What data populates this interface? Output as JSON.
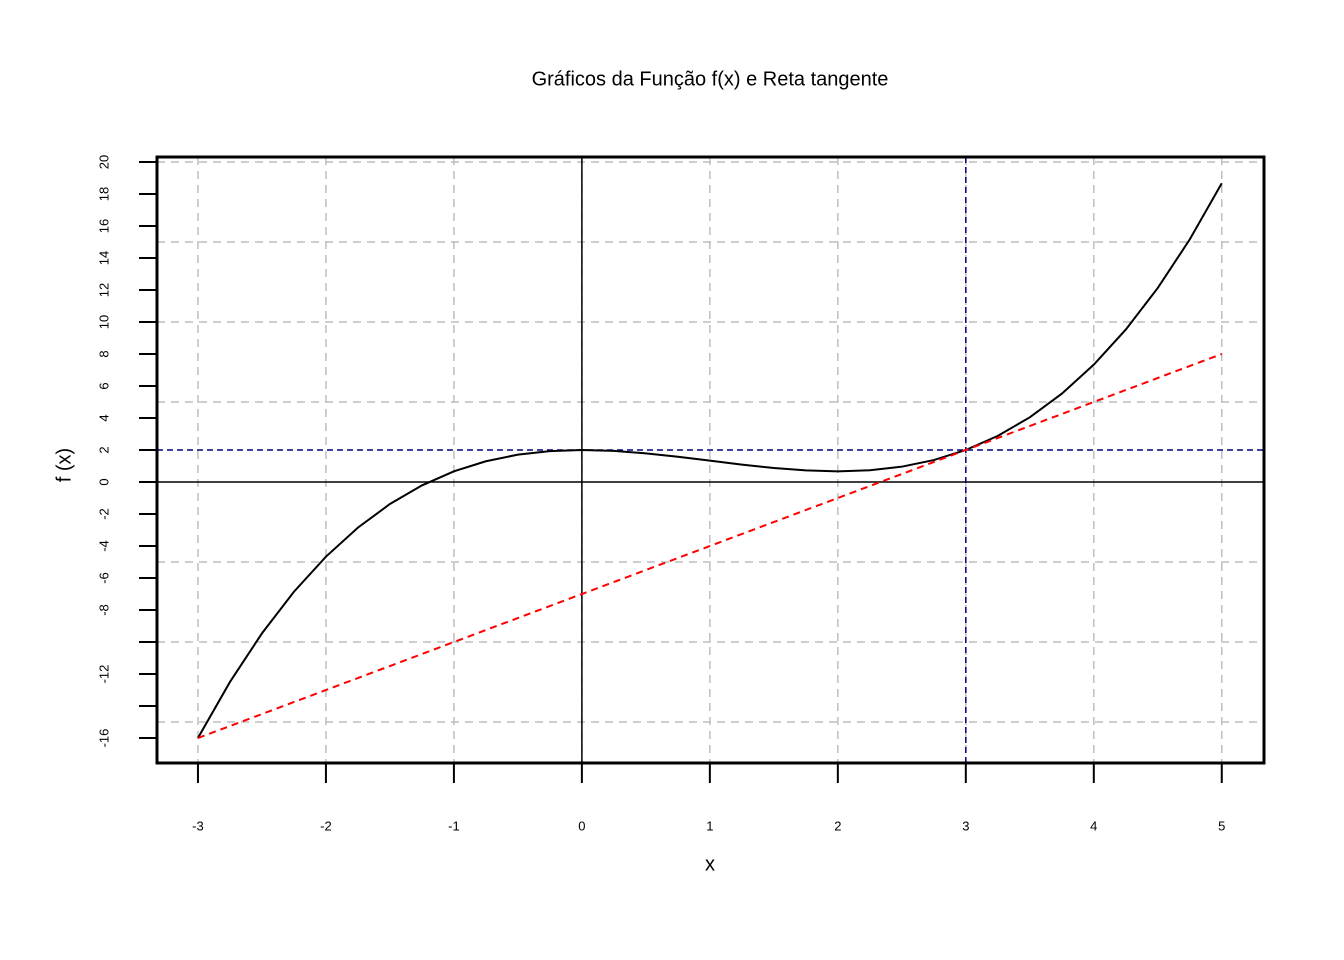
{
  "chart_data": {
    "type": "line",
    "title": "Gráficos da Função f(x) e Reta tangente",
    "x_label": "x",
    "y_label": "f (x)",
    "xlim": [
      -3.32,
      5.33
    ],
    "ylim": [
      -17.56,
      20.31
    ],
    "xticks": [
      -3,
      -2,
      -1,
      0,
      1,
      2,
      3,
      4,
      5
    ],
    "yticks": [
      -16,
      {
        "value": -14,
        "label": null
      },
      -12,
      {
        "value": -10,
        "label": null
      },
      -8,
      -6,
      -4,
      -2,
      0,
      2,
      4,
      6,
      8,
      10,
      12,
      14,
      16,
      18,
      20
    ],
    "grid": true,
    "grid_color": "#bebebe",
    "xgrid": [
      -3,
      -2,
      -1,
      0,
      1,
      2,
      3,
      4,
      5
    ],
    "ygrid": [
      -15,
      -10,
      -5,
      5,
      10,
      15,
      20
    ],
    "axis_lines": {
      "x": 0,
      "y": 0,
      "color": "#000000"
    },
    "reference_lines": {
      "h": 2,
      "v": 3,
      "color": "#000080"
    },
    "series": [
      {
        "color": "#000000",
        "style": "solid",
        "x": [
          -3,
          -2.75,
          -2.5,
          -2.25,
          -2,
          -1.75,
          -1.5,
          -1.25,
          -1,
          -0.75,
          -0.5,
          -0.25,
          0,
          0.25,
          0.5,
          0.75,
          1,
          1.25,
          1.5,
          1.75,
          2,
          2.25,
          2.5,
          2.75,
          3,
          3.25,
          3.5,
          3.75,
          4,
          4.25,
          4.5,
          4.75,
          5
        ],
        "values": [
          -16,
          -12.495,
          -9.458,
          -6.859,
          -4.667,
          -2.849,
          -1.375,
          -0.214,
          0.667,
          1.297,
          1.708,
          1.932,
          2,
          1.943,
          1.792,
          1.578,
          1.333,
          1.089,
          0.875,
          0.724,
          0.667,
          0.734,
          0.958,
          1.37,
          2,
          2.88,
          4.042,
          5.516,
          7.333,
          9.526,
          12.125,
          15.161,
          18.667
        ]
      },
      {
        "color": "#ff0000",
        "style": "dashed",
        "x": [
          -3,
          5
        ],
        "values": [
          -16,
          8
        ]
      }
    ]
  }
}
